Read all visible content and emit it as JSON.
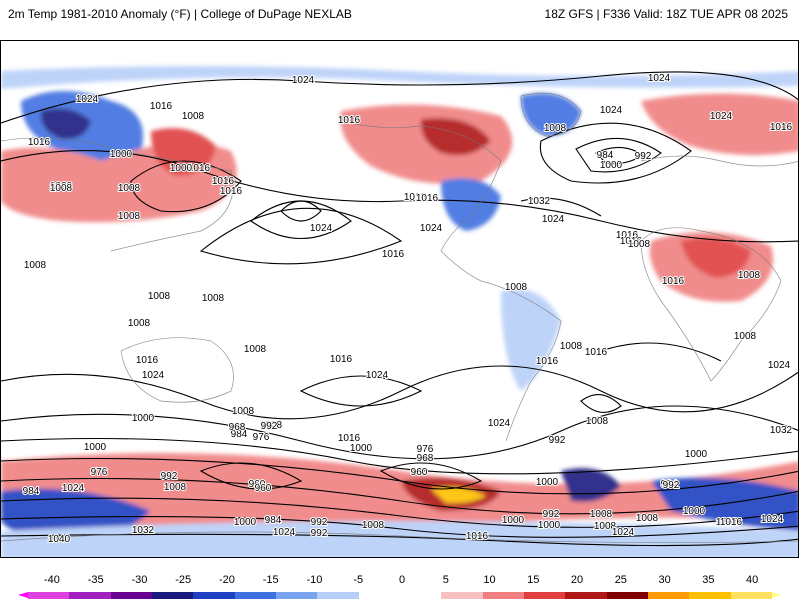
{
  "header": {
    "title_left": "2m Temp 1981-2010 Anomaly (°F) | College of DuPage NEXLAB",
    "title_right": "18Z GFS | F336 Valid: 18Z TUE APR 08 2025"
  },
  "colorbar": {
    "ticks": [
      "-40",
      "-35",
      "-30",
      "-25",
      "-20",
      "-15",
      "-10",
      "-5",
      "0",
      "5",
      "10",
      "15",
      "20",
      "25",
      "30",
      "35",
      "40"
    ],
    "colors": [
      "#e040e0",
      "#a020c0",
      "#6a0090",
      "#1a1a80",
      "#1f40c0",
      "#3f70e0",
      "#7aa4f0",
      "#b7cff8",
      "#ffffff",
      "#ffffff",
      "#f8c0c0",
      "#f08080",
      "#e04040",
      "#b01818",
      "#800000",
      "#ff9a00",
      "#ffc000",
      "#ffe060"
    ]
  },
  "isobars": {
    "labels": [
      "1024",
      "1024",
      "1016",
      "1008",
      "1016",
      "1008",
      "1000",
      "1016",
      "1008",
      "1000",
      "1008",
      "1016",
      "1016",
      "1008",
      "1008",
      "1016",
      "1024",
      "1016",
      "1024",
      "1024",
      "1016",
      "1008",
      "1016",
      "1016",
      "1032",
      "1024",
      "984",
      "992",
      "1000",
      "1024",
      "1016",
      "1016",
      "1008",
      "1008",
      "1008",
      "1008",
      "1008",
      "1008",
      "1008",
      "1008",
      "1016",
      "1024",
      "1016",
      "1024",
      "1024",
      "1016",
      "1016",
      "1008",
      "1016",
      "1008",
      "1008",
      "992",
      "984",
      "968",
      "976",
      "1016",
      "1000",
      "976",
      "968",
      "1024",
      "1000",
      "992",
      "1008",
      "1032",
      "1024",
      "1000",
      "1000",
      "984",
      "992",
      "976",
      "1024",
      "984",
      "992",
      "1008",
      "1016",
      "960",
      "1000",
      "984",
      "992",
      "1008",
      "1008",
      "1024",
      "1016",
      "1000",
      "992",
      "1000",
      "1016",
      "1040",
      "1032",
      "1008",
      "1024",
      "960",
      "1024",
      "992",
      "1000",
      "1000",
      "960",
      "1008"
    ]
  }
}
